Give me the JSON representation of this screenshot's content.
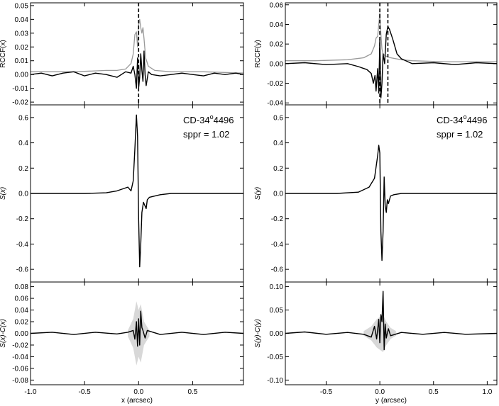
{
  "chart_data": [
    {
      "id": "rccf-x",
      "type": "line",
      "ylabel": "RCCF(x)",
      "xlim": [
        -1.0,
        0.97
      ],
      "ylim": [
        -0.022,
        0.052
      ],
      "yticks": [
        -0.02,
        -0.01,
        0.0,
        0.01,
        0.02,
        0.03,
        0.04,
        0.05
      ],
      "ytick_labels": [
        "-0.02",
        "-0.01",
        "0.00",
        "0.01",
        "0.02",
        "0.03",
        "0.04",
        "0.05"
      ],
      "dashed_lines": [
        0.0
      ],
      "series": [
        {
          "color": "#999999",
          "x": [
            -1.0,
            -0.6,
            -0.3,
            -0.2,
            -0.12,
            -0.07,
            -0.05,
            -0.035,
            -0.02,
            -0.01,
            0.0,
            0.01,
            0.02,
            0.03,
            0.04,
            0.05,
            0.065,
            0.09,
            0.15,
            0.3,
            0.6,
            0.97
          ],
          "y": [
            0.002,
            0.002,
            0.003,
            0.003,
            0.004,
            0.008,
            0.015,
            0.029,
            0.031,
            0.02,
            0.036,
            0.04,
            0.034,
            0.03,
            0.034,
            0.026,
            0.012,
            0.006,
            0.003,
            0.002,
            0.002,
            0.001
          ]
        },
        {
          "color": "#000000",
          "x": [
            -1.0,
            -0.9,
            -0.8,
            -0.7,
            -0.6,
            -0.5,
            -0.4,
            -0.3,
            -0.2,
            -0.12,
            -0.07,
            -0.05,
            -0.035,
            -0.02,
            -0.01,
            0.0,
            0.01,
            0.02,
            0.03,
            0.04,
            0.05,
            0.06,
            0.07,
            0.09,
            0.12,
            0.2,
            0.3,
            0.4,
            0.5,
            0.6,
            0.7,
            0.8,
            0.9,
            0.97
          ],
          "y": [
            0.0,
            0.001,
            -0.001,
            0.001,
            0.002,
            -0.001,
            0.001,
            0.0,
            -0.002,
            0.002,
            0.001,
            0.006,
            0.0,
            -0.01,
            0.012,
            -0.01,
            -0.002,
            0.015,
            0.003,
            -0.005,
            0.017,
            0.0,
            -0.008,
            0.002,
            0.0,
            -0.001,
            0.0,
            0.001,
            0.0,
            -0.001,
            0.001,
            0.0,
            0.001,
            0.0
          ]
        }
      ]
    },
    {
      "id": "sx",
      "type": "line",
      "ylabel": "S(x)",
      "xlim": [
        -1.0,
        0.97
      ],
      "ylim": [
        -0.7,
        0.7
      ],
      "yticks": [
        -0.6,
        -0.4,
        -0.2,
        0.0,
        0.2,
        0.4,
        0.6
      ],
      "ytick_labels": [
        "-0.6",
        "-0.4",
        "-0.2",
        "0.0",
        "0.2",
        "0.4",
        "0.6"
      ],
      "annotation_star": "CD-34",
      "annotation_sup": "o",
      "annotation_num": "4496",
      "annotation_sppr": "sppr = 1.02",
      "series": [
        {
          "color": "#000000",
          "x": [
            -1.0,
            -0.5,
            -0.3,
            -0.2,
            -0.1,
            -0.07,
            -0.05,
            -0.035,
            -0.02,
            -0.01,
            0.0,
            0.01,
            0.02,
            0.03,
            0.045,
            0.06,
            0.07,
            0.08,
            0.1,
            0.2,
            0.3,
            0.5,
            0.97
          ],
          "y": [
            0.0,
            0.0,
            0.005,
            0.02,
            0.05,
            0.02,
            0.1,
            0.35,
            0.62,
            0.45,
            -0.2,
            -0.58,
            -0.4,
            -0.15,
            -0.07,
            -0.1,
            -0.12,
            -0.05,
            -0.03,
            -0.01,
            0.0,
            0.0,
            0.0
          ]
        }
      ]
    },
    {
      "id": "sx-cx",
      "type": "line",
      "ylabel": "S(x)-C(x)",
      "xlabel": "x (arcsec)",
      "xlim": [
        -1.0,
        0.97
      ],
      "ylim": [
        -0.088,
        0.088
      ],
      "xticks": [
        -1.0,
        -0.5,
        0.0,
        0.5
      ],
      "xtick_labels": [
        "-1.0",
        "-0.5",
        "0.0",
        "0.5"
      ],
      "yticks": [
        -0.08,
        -0.06,
        -0.04,
        -0.02,
        0.0,
        0.02,
        0.04,
        0.06,
        0.08
      ],
      "ytick_labels": [
        "-0.08",
        "-0.06",
        "-0.04",
        "-0.02",
        "0.00",
        "0.02",
        "0.04",
        "0.06",
        "0.08"
      ],
      "band": {
        "color": "#d8d8d8",
        "x": [
          -0.1,
          -0.05,
          -0.02,
          0.0,
          0.02,
          0.05,
          0.1
        ],
        "upper": [
          0.005,
          0.025,
          0.055,
          0.04,
          0.05,
          0.02,
          0.005
        ],
        "lower": [
          -0.005,
          -0.025,
          -0.055,
          -0.04,
          -0.05,
          -0.02,
          -0.005
        ]
      },
      "series": [
        {
          "color": "#000000",
          "x": [
            -1.0,
            -0.8,
            -0.6,
            -0.4,
            -0.2,
            -0.1,
            -0.05,
            -0.035,
            -0.02,
            -0.01,
            0.0,
            0.01,
            0.02,
            0.03,
            0.04,
            0.06,
            0.08,
            0.2,
            0.4,
            0.6,
            0.8,
            0.97
          ],
          "y": [
            0.0,
            0.002,
            -0.002,
            0.002,
            -0.001,
            0.002,
            0.005,
            -0.01,
            0.02,
            -0.022,
            0.025,
            -0.02,
            0.038,
            0.01,
            0.005,
            -0.008,
            0.005,
            -0.002,
            0.002,
            -0.002,
            0.002,
            0.0
          ]
        }
      ]
    },
    {
      "id": "rccf-y",
      "type": "line",
      "ylabel": "RCCF(y)",
      "xlim": [
        -0.88,
        1.09
      ],
      "ylim": [
        -0.042,
        0.062
      ],
      "yticks": [
        -0.04,
        -0.02,
        0.0,
        0.02,
        0.04,
        0.06
      ],
      "ytick_labels": [
        "-0.04",
        "-0.02",
        "0.00",
        "0.02",
        "0.04",
        "0.06"
      ],
      "dashed_lines": [
        0.0,
        0.075
      ],
      "series": [
        {
          "color": "#999999",
          "x": [
            -0.88,
            -0.6,
            -0.3,
            -0.15,
            -0.08,
            -0.05,
            -0.035,
            -0.02,
            -0.01,
            0.0,
            0.01,
            0.02,
            0.03,
            0.05,
            0.1,
            0.2,
            0.3,
            0.6,
            1.09
          ],
          "y": [
            0.003,
            0.003,
            0.004,
            0.006,
            0.01,
            0.018,
            0.026,
            0.028,
            0.04,
            0.052,
            0.03,
            0.015,
            0.01,
            0.008,
            0.006,
            0.004,
            0.003,
            0.002,
            0.002
          ]
        },
        {
          "color": "#000000",
          "x": [
            -0.88,
            -0.7,
            -0.5,
            -0.3,
            -0.2,
            -0.12,
            -0.08,
            -0.06,
            -0.045,
            -0.035,
            -0.02,
            -0.01,
            0.0,
            0.01,
            0.02,
            0.03,
            0.045,
            0.06,
            0.075,
            0.09,
            0.12,
            0.16,
            0.2,
            0.3,
            0.5,
            0.7,
            0.9,
            1.09
          ],
          "y": [
            0.0,
            0.001,
            -0.001,
            0.0,
            -0.003,
            -0.006,
            -0.01,
            -0.02,
            -0.012,
            -0.028,
            -0.005,
            -0.03,
            0.025,
            -0.035,
            -0.02,
            0.01,
            0.0,
            0.03,
            0.038,
            0.035,
            0.025,
            0.01,
            0.005,
            0.0,
            0.001,
            -0.001,
            0.001,
            0.0
          ]
        }
      ]
    },
    {
      "id": "sy",
      "type": "line",
      "ylabel": "S(y)",
      "xlim": [
        -0.88,
        1.09
      ],
      "ylim": [
        -0.7,
        0.7
      ],
      "yticks": [
        -0.6,
        -0.4,
        -0.2,
        0.0,
        0.2,
        0.4,
        0.6
      ],
      "ytick_labels": [
        "-0.6",
        "-0.4",
        "-0.2",
        "0.0",
        "0.2",
        "0.4",
        "0.6"
      ],
      "annotation_star": "CD-34",
      "annotation_sup": "o",
      "annotation_num": "4496",
      "annotation_sppr": "sppr = 1.02",
      "series": [
        {
          "color": "#000000",
          "x": [
            -0.88,
            -0.4,
            -0.2,
            -0.1,
            -0.05,
            -0.02,
            -0.01,
            0.0,
            0.01,
            0.02,
            0.03,
            0.04,
            0.05,
            0.06,
            0.07,
            0.08,
            0.1,
            0.13,
            0.2,
            0.4,
            1.09
          ],
          "y": [
            0.0,
            0.0,
            0.01,
            0.05,
            0.12,
            0.3,
            0.38,
            0.32,
            -0.3,
            -0.53,
            -0.3,
            0.13,
            -0.1,
            -0.15,
            -0.05,
            -0.08,
            -0.02,
            -0.01,
            0.0,
            0.0,
            0.0
          ]
        }
      ]
    },
    {
      "id": "sy-cy",
      "type": "line",
      "ylabel": "S(y)-C(y)",
      "xlabel": "y (arcsec)",
      "xlim": [
        -0.88,
        1.09
      ],
      "ylim": [
        -0.11,
        0.11
      ],
      "xticks": [
        -0.5,
        0.0,
        0.5,
        1.0
      ],
      "xtick_labels": [
        "-0.5",
        "0.0",
        "0.5",
        "1.0"
      ],
      "yticks": [
        -0.1,
        -0.05,
        0.0,
        0.05,
        0.1
      ],
      "ytick_labels": [
        "-0.10",
        "-0.05",
        "0.00",
        "0.05",
        "0.10"
      ],
      "band": {
        "color": "#d8d8d8",
        "x": [
          -0.15,
          -0.08,
          -0.03,
          0.0,
          0.03,
          0.06,
          0.1,
          0.15
        ],
        "upper": [
          0.005,
          0.015,
          0.03,
          0.035,
          0.04,
          0.025,
          0.012,
          0.005
        ],
        "lower": [
          -0.005,
          -0.015,
          -0.03,
          -0.035,
          -0.04,
          -0.025,
          -0.012,
          -0.005
        ]
      },
      "series": [
        {
          "color": "#000000",
          "x": [
            -0.88,
            -0.7,
            -0.5,
            -0.3,
            -0.15,
            -0.08,
            -0.05,
            -0.03,
            -0.01,
            0.0,
            0.01,
            0.02,
            0.03,
            0.04,
            0.05,
            0.06,
            0.08,
            0.1,
            0.2,
            0.4,
            0.6,
            0.8,
            1.09
          ],
          "y": [
            0.0,
            0.003,
            -0.002,
            0.002,
            -0.002,
            -0.008,
            0.015,
            -0.012,
            0.03,
            -0.02,
            0.04,
            0.025,
            0.09,
            -0.035,
            0.02,
            -0.01,
            0.01,
            -0.005,
            0.002,
            -0.002,
            0.002,
            -0.002,
            0.0
          ]
        }
      ]
    }
  ]
}
